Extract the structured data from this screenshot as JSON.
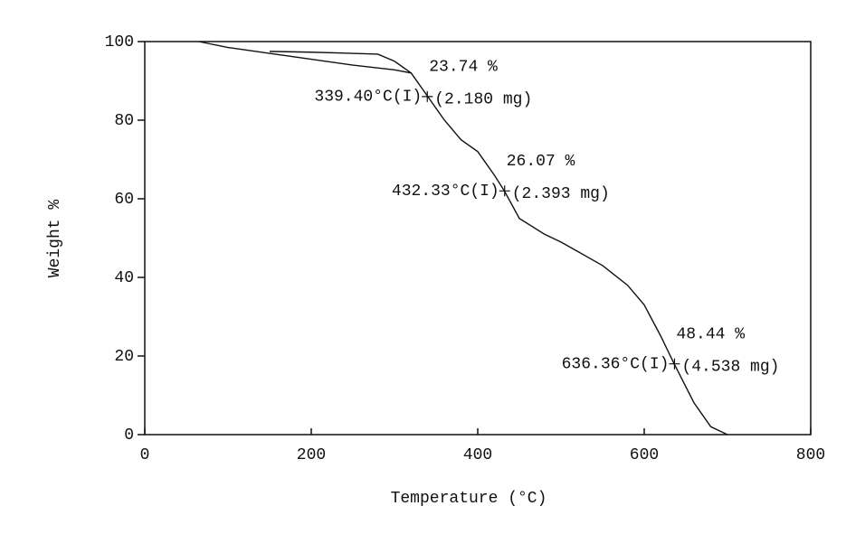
{
  "chart_data": {
    "type": "line",
    "x_label": "Temperature (°C)",
    "y_label": "Weight %",
    "xlim": [
      0,
      800
    ],
    "xticks": [
      0,
      200,
      400,
      600,
      800
    ],
    "ylim": [
      0,
      100
    ],
    "yticks": [
      0,
      20,
      40,
      60,
      80,
      100
    ],
    "color": "#111111",
    "series": [
      {
        "x": [
          65,
          100,
          150,
          200,
          250,
          300,
          320,
          340,
          360,
          380,
          400,
          420,
          432,
          450,
          480,
          500,
          550,
          580,
          600,
          620,
          636,
          660,
          680,
          700
        ],
        "values": [
          100,
          98.5,
          97,
          95.5,
          94,
          92.8,
          92,
          86,
          80,
          75,
          72,
          66,
          62,
          55,
          51,
          49,
          43,
          38,
          33,
          25,
          18,
          8,
          2,
          0
        ]
      },
      {
        "x": [
          150,
          200,
          250,
          280,
          300,
          320
        ],
        "values": [
          97.5,
          97.3,
          97,
          96.8,
          95,
          92
        ]
      }
    ],
    "annotations": [
      {
        "x": 339.4,
        "y": 86,
        "temperature": "339.40°C(I)",
        "percent": "23.74 %",
        "mass": "(2.180 mg)"
      },
      {
        "x": 432.33,
        "y": 62,
        "temperature": "432.33°C(I)",
        "percent": "26.07 %",
        "mass": "(2.393 mg)"
      },
      {
        "x": 636.36,
        "y": 18,
        "temperature": "636.36°C(I)",
        "percent": "48.44 %",
        "mass": "(4.538 mg)"
      }
    ]
  }
}
